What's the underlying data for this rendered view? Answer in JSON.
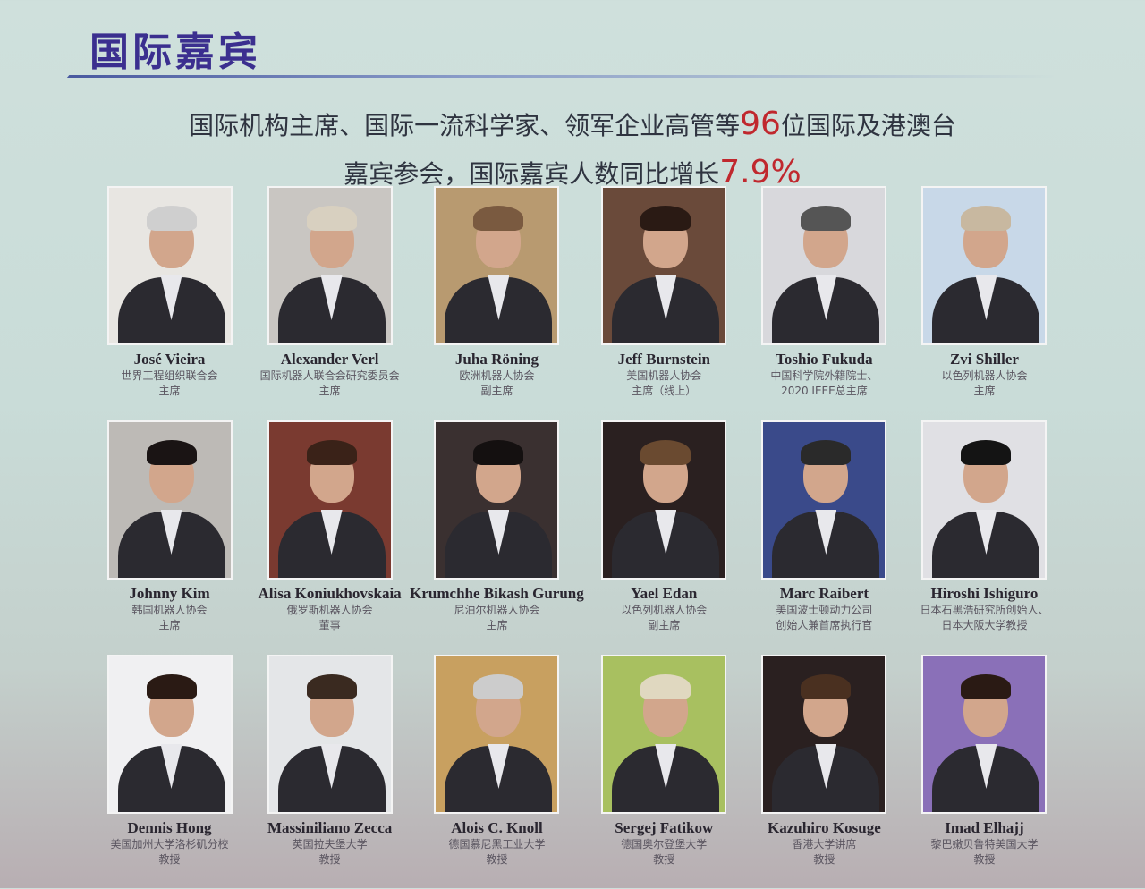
{
  "header": {
    "title": "国际嘉宾"
  },
  "summary": {
    "line1_pre": "国际机构主席、国际一流科学家、领军企业高管等",
    "line1_num": "96",
    "line1_post": "位国际及港澳台",
    "line2_pre": "嘉宾参会，国际嘉宾人数同比增长",
    "line2_num": "7.9%",
    "highlight_color": "#c0282e"
  },
  "guests": [
    {
      "name": "José Vieira",
      "org": "世界工程组织联合会",
      "role": "主席"
    },
    {
      "name": "Alexander Verl",
      "org": "国际机器人联合会研究委员会",
      "role": "主席"
    },
    {
      "name": "Juha Röning",
      "org": "欧洲机器人协会",
      "role": "副主席"
    },
    {
      "name": "Jeff Burnstein",
      "org": "美国机器人协会",
      "role": "主席（线上）"
    },
    {
      "name": "Toshio Fukuda",
      "org": "中国科学院外籍院士、",
      "role": "2020 IEEE总主席"
    },
    {
      "name": "Zvi Shiller",
      "org": "以色列机器人协会",
      "role": "主席"
    },
    {
      "name": "Johnny Kim",
      "org": "韩国机器人协会",
      "role": "主席"
    },
    {
      "name": "Alisa Koniukhovskaia",
      "org": "俄罗斯机器人协会",
      "role": "董事"
    },
    {
      "name": "Krumchhe Bikash Gurung",
      "org": "尼泊尔机器人协会",
      "role": "主席"
    },
    {
      "name": "Yael Edan",
      "org": "以色列机器人协会",
      "role": "副主席"
    },
    {
      "name": "Marc Raibert",
      "org": "美国波士顿动力公司",
      "role": "创始人兼首席执行官"
    },
    {
      "name": "Hiroshi Ishiguro",
      "org": "日本石黑浩研究所创始人、",
      "role": "日本大阪大学教授"
    },
    {
      "name": "Dennis Hong",
      "org": "美国加州大学洛杉矶分校",
      "role": "教授"
    },
    {
      "name": "Massiniliano Zecca",
      "org": "英国拉夫堡大学",
      "role": "教授"
    },
    {
      "name": "Alois C. Knoll",
      "org": "德国慕尼黑工业大学",
      "role": "教授"
    },
    {
      "name": "Sergej Fatikow",
      "org": "德国奥尔登堡大学",
      "role": "教授"
    },
    {
      "name": "Kazuhiro Kosuge",
      "org": "香港大学讲席",
      "role": "教授"
    },
    {
      "name": "Imad Elhajj",
      "org": "黎巴嫩贝鲁特美国大学",
      "role": "教授"
    }
  ]
}
